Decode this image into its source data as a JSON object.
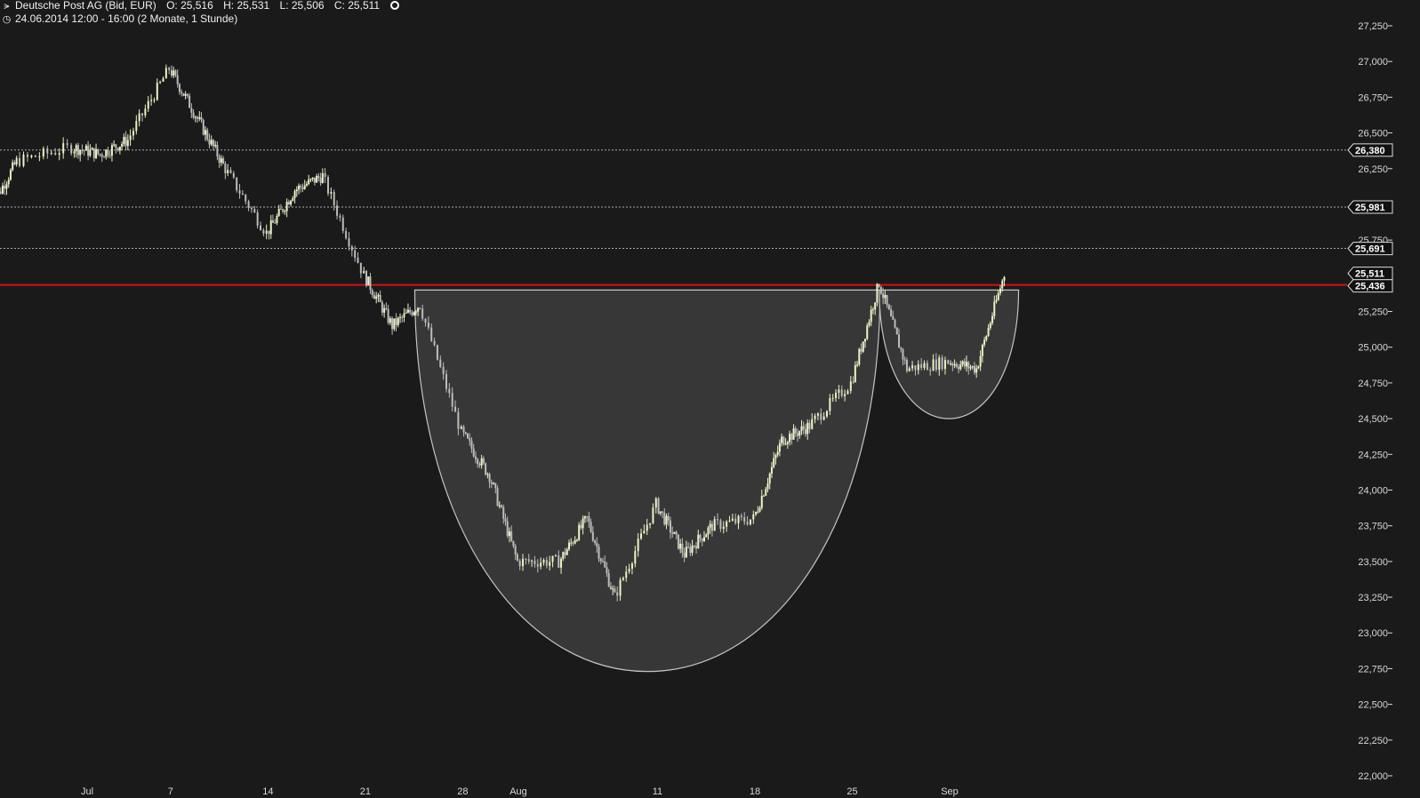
{
  "header": {
    "instrument": "Deutsche Post AG (Bid, EUR)",
    "open": "O: 25,516",
    "high": "H: 25,531",
    "low": "L: 25,506",
    "close": "C: 25,511",
    "period": "24.06.2014 12:00 - 16:00 (2 Monate, 1 Stunde)",
    "icons": [
      "candle-chart-icon",
      "clock-icon",
      "settings-icon"
    ]
  },
  "colors": {
    "background": "#1b1a1a",
    "candle_up": "#e9f5c4",
    "candle_down": "#bcbcbc",
    "resistance_line": "#d41010",
    "reference_lines": "#dddddd",
    "pattern_fill": "#3a3939",
    "pattern_stroke": "#cfcfcf"
  },
  "chart_data": {
    "type": "line",
    "title": "",
    "xlabel": "",
    "ylabel": "",
    "ylim": [
      22000,
      27250
    ],
    "y_ticks": [
      "22,000",
      "22,250",
      "22,500",
      "22,750",
      "23,000",
      "23,250",
      "23,500",
      "23,750",
      "24,000",
      "24,250",
      "24,500",
      "24,750",
      "25,000",
      "25,250",
      "25,500",
      "25,750",
      "26,000",
      "26,250",
      "26,500",
      "26,750",
      "27,000",
      "27,250"
    ],
    "x_ticks": [
      "Jul",
      "7",
      "14",
      "21",
      "28",
      "Aug",
      "11",
      "18",
      "25",
      "Sep"
    ],
    "series": [
      {
        "x": [
          "2014-06-24",
          "2014-06-26",
          "2014-06-30",
          "2014-07-02",
          "2014-07-04",
          "2014-07-07",
          "2014-07-09",
          "2014-07-11",
          "2014-07-14",
          "2014-07-16",
          "2014-07-18",
          "2014-07-21",
          "2014-07-23",
          "2014-07-25",
          "2014-07-28",
          "2014-07-30",
          "2014-08-01",
          "2014-08-04",
          "2014-08-06",
          "2014-08-08",
          "2014-08-11",
          "2014-08-13",
          "2014-08-15",
          "2014-08-18",
          "2014-08-20",
          "2014-08-22",
          "2014-08-25",
          "2014-08-27",
          "2014-08-29",
          "2014-09-01",
          "2014-09-03",
          "2014-09-05"
        ],
        "values": [
          25950,
          26300,
          26400,
          26350,
          26450,
          26950,
          26600,
          26250,
          25800,
          26100,
          26200,
          25500,
          25150,
          25300,
          24400,
          24100,
          23500,
          23500,
          23800,
          23250,
          23900,
          23550,
          23750,
          23800,
          24350,
          24450,
          24750,
          25450,
          24850,
          24900,
          24850,
          25511
        ]
      }
    ],
    "horizontal_levels": {
      "dashed": [
        "26,380",
        "25,981",
        "25,691"
      ],
      "current_price": "25,511",
      "resistance": "25,436"
    },
    "patterns": [
      {
        "name": "cup",
        "left": "2014-07-25",
        "right": "2014-08-27",
        "rim": 25400,
        "bottom": 22730
      },
      {
        "name": "handle",
        "left": "2014-08-27",
        "right": "2014-09-05",
        "rim": 25400,
        "bottom": 24500
      }
    ],
    "grid": false,
    "legend": "none"
  }
}
